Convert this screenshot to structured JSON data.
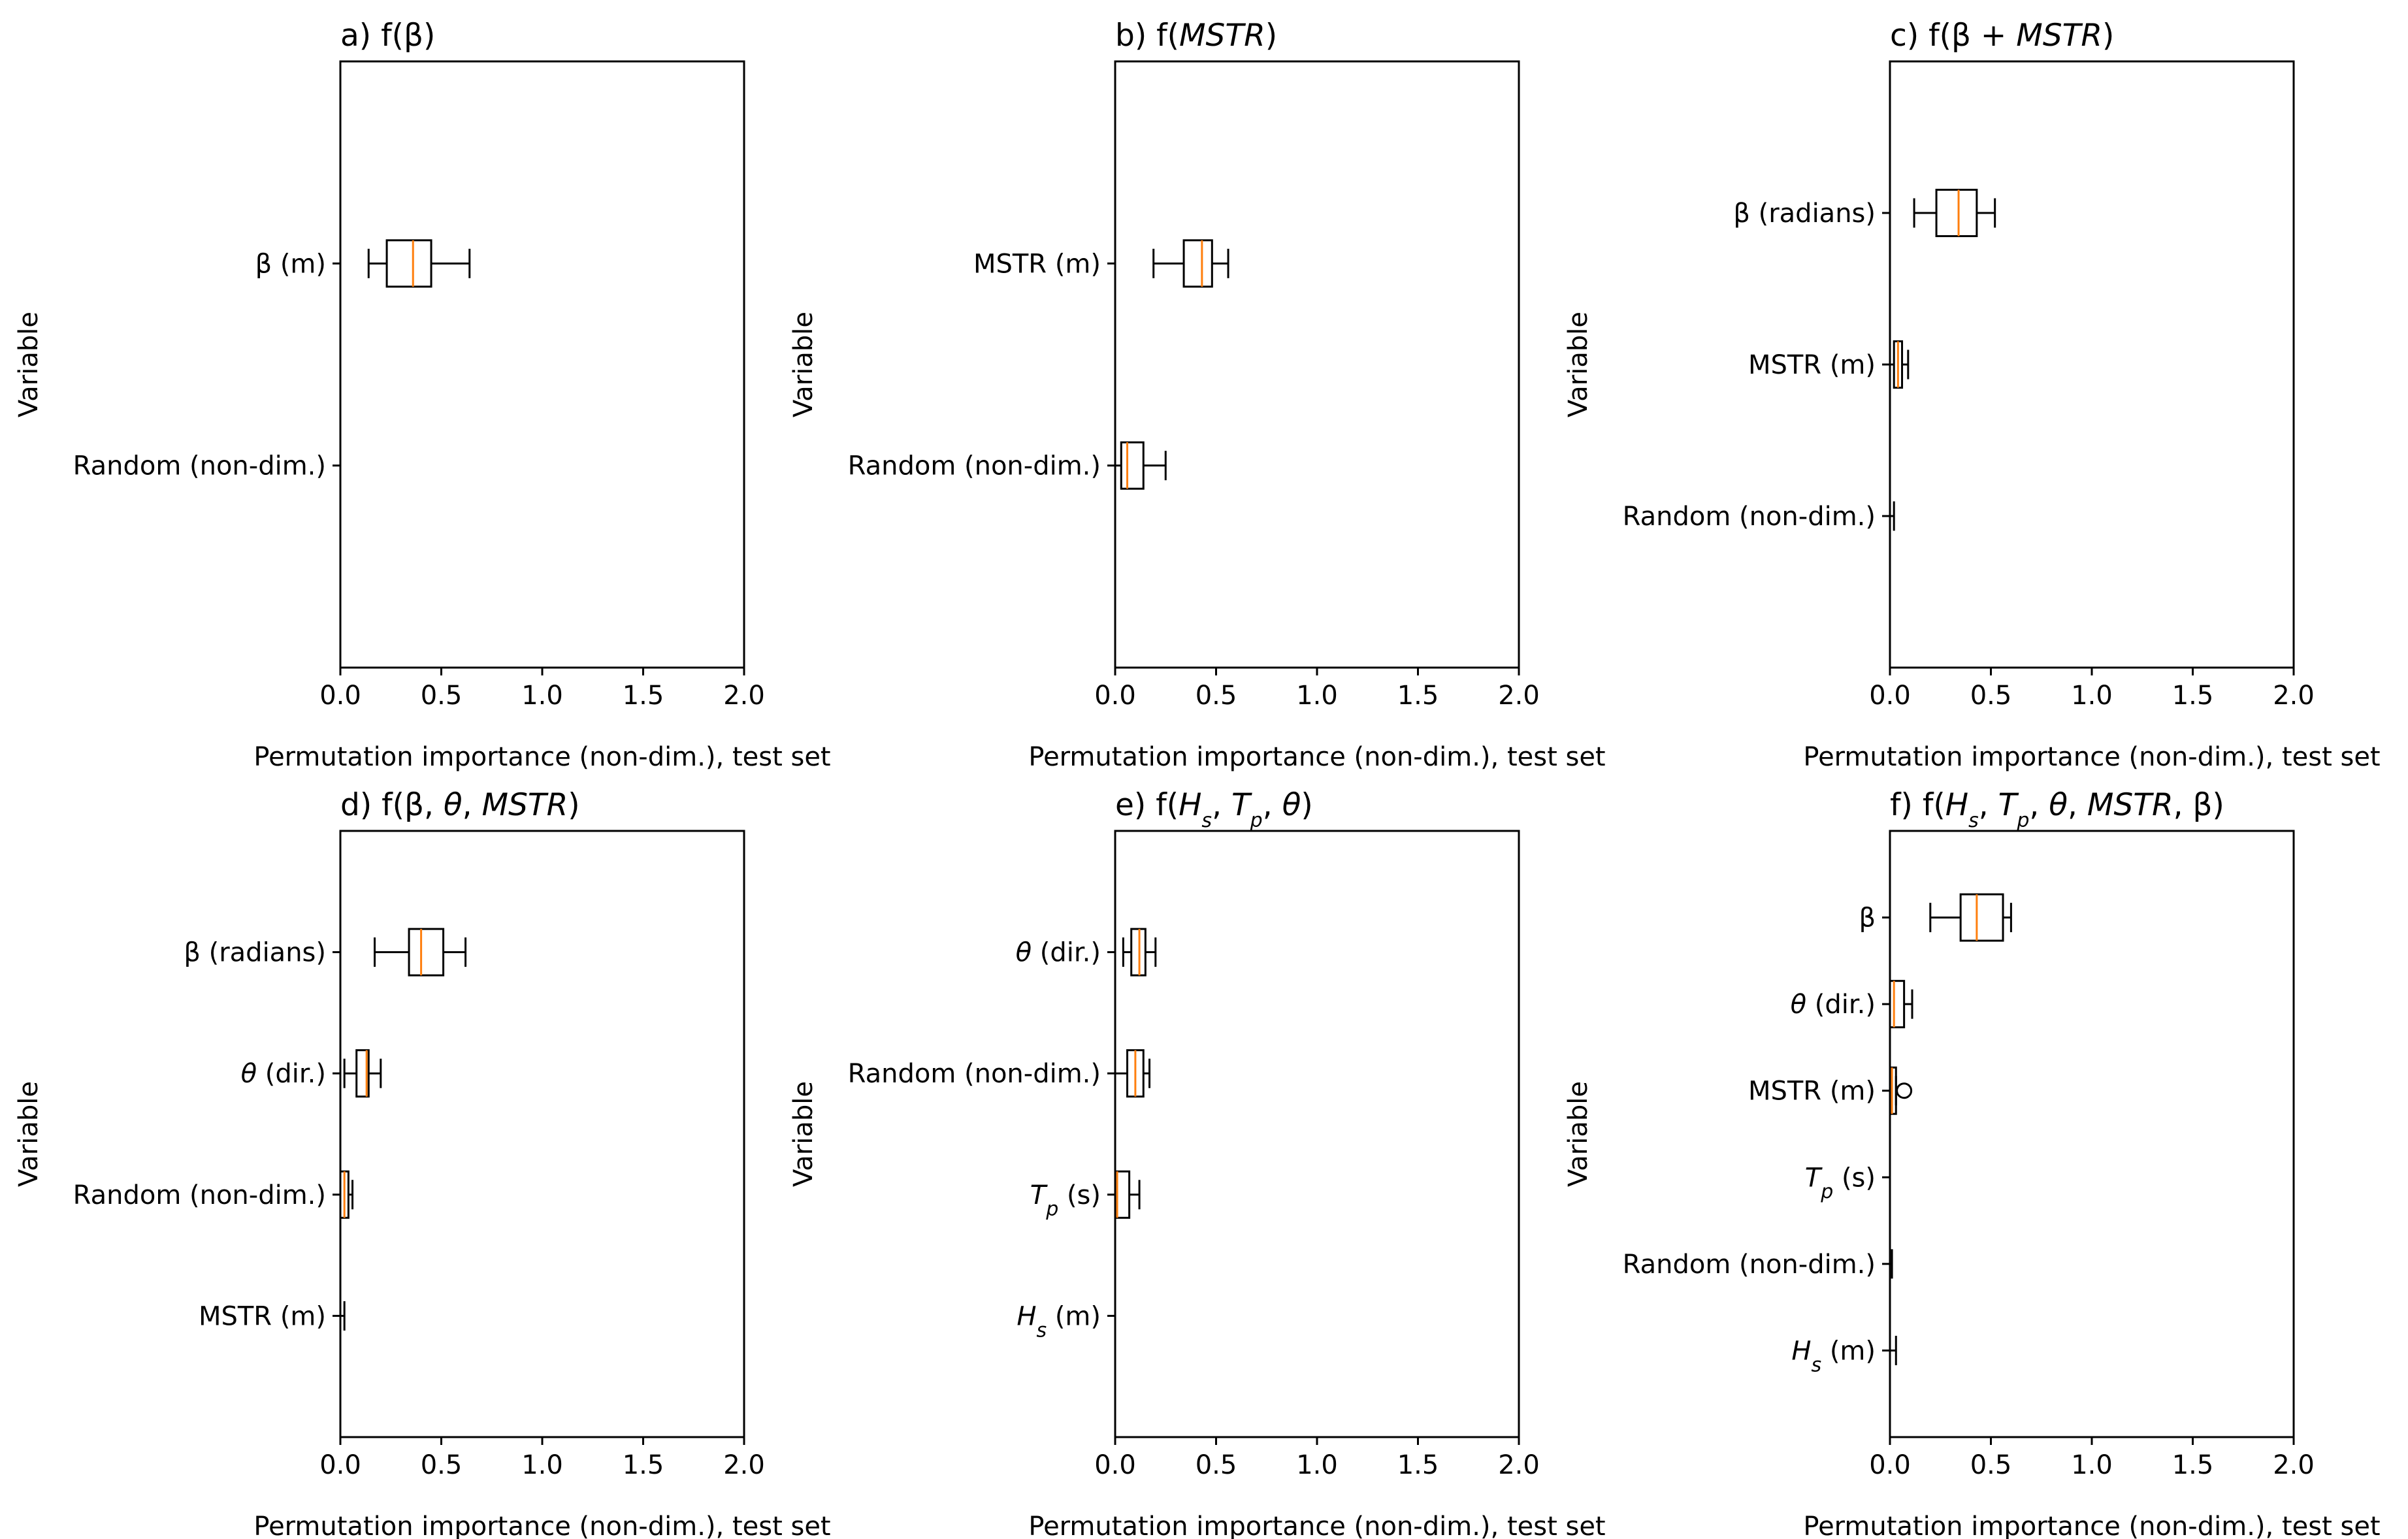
{
  "figure": {
    "colors": {
      "box": "#000000",
      "median": "#ff7f0e",
      "background": "#ffffff"
    }
  },
  "chart_data": [
    {
      "type": "boxplot",
      "orientation": "horizontal",
      "title_parts": [
        {
          "t": "a) f(β)"
        }
      ],
      "xlabel": "Permutation importance (non-dim.), test set",
      "ylabel": "Variable",
      "xlim": [
        0,
        2
      ],
      "xticks": [
        "0.0",
        "0.5",
        "1.0",
        "1.5",
        "2.0"
      ],
      "series": [
        {
          "label_parts": [
            {
              "t": "β (m)"
            }
          ],
          "whislo": 0.14,
          "q1": 0.23,
          "med": 0.36,
          "q3": 0.45,
          "whishi": 0.64,
          "fliers": []
        },
        {
          "label_parts": [
            {
              "t": "Random (non-dim.)"
            }
          ],
          "whislo": 0.0,
          "q1": 0.0,
          "med": 0.0,
          "q3": 0.0,
          "whishi": 0.0,
          "fliers": []
        }
      ]
    },
    {
      "type": "boxplot",
      "orientation": "horizontal",
      "title_parts": [
        {
          "t": "b) f("
        },
        {
          "t": "MSTR",
          "i": true
        },
        {
          "t": ")"
        }
      ],
      "xlabel": "Permutation importance (non-dim.), test set",
      "ylabel": "Variable",
      "xlim": [
        0,
        2
      ],
      "xticks": [
        "0.0",
        "0.5",
        "1.0",
        "1.5",
        "2.0"
      ],
      "series": [
        {
          "label_parts": [
            {
              "t": "MSTR (m)"
            }
          ],
          "whislo": 0.19,
          "q1": 0.34,
          "med": 0.43,
          "q3": 0.48,
          "whishi": 0.56,
          "fliers": []
        },
        {
          "label_parts": [
            {
              "t": "Random (non-dim.)"
            }
          ],
          "whislo": 0.0,
          "q1": 0.03,
          "med": 0.06,
          "q3": 0.14,
          "whishi": 0.25,
          "fliers": []
        }
      ]
    },
    {
      "type": "boxplot",
      "orientation": "horizontal",
      "title_parts": [
        {
          "t": "c) f(β + "
        },
        {
          "t": "MSTR",
          "i": true
        },
        {
          "t": ")"
        }
      ],
      "xlabel": "Permutation importance (non-dim.), test set",
      "ylabel": "Variable",
      "xlim": [
        0,
        2
      ],
      "xticks": [
        "0.0",
        "0.5",
        "1.0",
        "1.5",
        "2.0"
      ],
      "series": [
        {
          "label_parts": [
            {
              "t": "β (radians)"
            }
          ],
          "whislo": 0.12,
          "q1": 0.23,
          "med": 0.34,
          "q3": 0.43,
          "whishi": 0.52,
          "fliers": []
        },
        {
          "label_parts": [
            {
              "t": "MSTR (m)"
            }
          ],
          "whislo": 0.0,
          "q1": 0.02,
          "med": 0.04,
          "q3": 0.06,
          "whishi": 0.09,
          "fliers": []
        },
        {
          "label_parts": [
            {
              "t": "Random (non-dim.)"
            }
          ],
          "whislo": 0.0,
          "q1": 0.0,
          "med": 0.0,
          "q3": 0.0,
          "whishi": 0.02,
          "fliers": []
        }
      ]
    },
    {
      "type": "boxplot",
      "orientation": "horizontal",
      "title_parts": [
        {
          "t": "d) f(β, "
        },
        {
          "t": "θ",
          "i": true
        },
        {
          "t": ", "
        },
        {
          "t": "MSTR",
          "i": true
        },
        {
          "t": ")"
        }
      ],
      "xlabel": "Permutation importance (non-dim.), test set",
      "ylabel": "Variable",
      "xlim": [
        0,
        2
      ],
      "xticks": [
        "0.0",
        "0.5",
        "1.0",
        "1.5",
        "2.0"
      ],
      "series": [
        {
          "label_parts": [
            {
              "t": "β (radians)"
            }
          ],
          "whislo": 0.17,
          "q1": 0.34,
          "med": 0.4,
          "q3": 0.51,
          "whishi": 0.62,
          "fliers": []
        },
        {
          "label_parts": [
            {
              "t": "θ",
              "i": true
            },
            {
              "t": " (dir.)"
            }
          ],
          "whislo": 0.02,
          "q1": 0.08,
          "med": 0.13,
          "q3": 0.14,
          "whishi": 0.2,
          "fliers": []
        },
        {
          "label_parts": [
            {
              "t": "Random (non-dim.)"
            }
          ],
          "whislo": 0.0,
          "q1": 0.0,
          "med": 0.02,
          "q3": 0.04,
          "whishi": 0.06,
          "fliers": []
        },
        {
          "label_parts": [
            {
              "t": "MSTR (m)"
            }
          ],
          "whislo": 0.0,
          "q1": 0.0,
          "med": 0.0,
          "q3": 0.0,
          "whishi": 0.02,
          "fliers": []
        }
      ]
    },
    {
      "type": "boxplot",
      "orientation": "horizontal",
      "title_parts": [
        {
          "t": "e) f("
        },
        {
          "t": "H",
          "i": true
        },
        {
          "t": "s",
          "i": true,
          "sub": true
        },
        {
          "t": ", "
        },
        {
          "t": "T",
          "i": true
        },
        {
          "t": "p",
          "i": true,
          "sub": true
        },
        {
          "t": ", "
        },
        {
          "t": "θ",
          "i": true
        },
        {
          "t": ")"
        }
      ],
      "xlabel": "Permutation importance (non-dim.), test set",
      "ylabel": "Variable",
      "xlim": [
        0,
        2
      ],
      "xticks": [
        "0.0",
        "0.5",
        "1.0",
        "1.5",
        "2.0"
      ],
      "series": [
        {
          "label_parts": [
            {
              "t": "θ",
              "i": true
            },
            {
              "t": " (dir.)"
            }
          ],
          "whislo": 0.04,
          "q1": 0.08,
          "med": 0.12,
          "q3": 0.15,
          "whishi": 0.2,
          "fliers": []
        },
        {
          "label_parts": [
            {
              "t": "Random (non-dim.)"
            }
          ],
          "whislo": 0.0,
          "q1": 0.06,
          "med": 0.1,
          "q3": 0.14,
          "whishi": 0.17,
          "fliers": []
        },
        {
          "label_parts": [
            {
              "t": "T",
              "i": true
            },
            {
              "t": "p",
              "i": true,
              "sub": true
            },
            {
              "t": " (s)"
            }
          ],
          "whislo": 0.0,
          "q1": 0.0,
          "med": 0.01,
          "q3": 0.07,
          "whishi": 0.12,
          "fliers": []
        },
        {
          "label_parts": [
            {
              "t": "H",
              "i": true
            },
            {
              "t": "s",
              "i": true,
              "sub": true
            },
            {
              "t": " (m)"
            }
          ],
          "whislo": 0.0,
          "q1": 0.0,
          "med": 0.0,
          "q3": 0.0,
          "whishi": 0.0,
          "fliers": []
        }
      ]
    },
    {
      "type": "boxplot",
      "orientation": "horizontal",
      "title_parts": [
        {
          "t": "f) f("
        },
        {
          "t": "H",
          "i": true
        },
        {
          "t": "s",
          "i": true,
          "sub": true
        },
        {
          "t": ", "
        },
        {
          "t": "T",
          "i": true
        },
        {
          "t": "p",
          "i": true,
          "sub": true
        },
        {
          "t": ", "
        },
        {
          "t": "θ",
          "i": true
        },
        {
          "t": ", "
        },
        {
          "t": "MSTR",
          "i": true
        },
        {
          "t": ", β)"
        }
      ],
      "xlabel": "Permutation importance (non-dim.), test set",
      "ylabel": "Variable",
      "xlim": [
        0,
        2
      ],
      "xticks": [
        "0.0",
        "0.5",
        "1.0",
        "1.5",
        "2.0"
      ],
      "series": [
        {
          "label_parts": [
            {
              "t": "β"
            }
          ],
          "whislo": 0.2,
          "q1": 0.35,
          "med": 0.43,
          "q3": 0.56,
          "whishi": 0.6,
          "fliers": []
        },
        {
          "label_parts": [
            {
              "t": "θ",
              "i": true
            },
            {
              "t": " (dir.)"
            }
          ],
          "whislo": 0.0,
          "q1": 0.0,
          "med": 0.02,
          "q3": 0.07,
          "whishi": 0.11,
          "fliers": []
        },
        {
          "label_parts": [
            {
              "t": "MSTR (m)"
            }
          ],
          "whislo": 0.0,
          "q1": 0.0,
          "med": 0.01,
          "q3": 0.03,
          "whishi": 0.03,
          "fliers": [
            0.07
          ]
        },
        {
          "label_parts": [
            {
              "t": "T",
              "i": true
            },
            {
              "t": "p",
              "i": true,
              "sub": true
            },
            {
              "t": " (s)"
            }
          ],
          "whislo": 0.0,
          "q1": 0.0,
          "med": 0.0,
          "q3": 0.0,
          "whishi": 0.0,
          "fliers": []
        },
        {
          "label_parts": [
            {
              "t": "Random (non-dim.)"
            }
          ],
          "whislo": 0.0,
          "q1": 0.0,
          "med": 0.0,
          "q3": 0.0,
          "whishi": 0.01,
          "fliers": []
        },
        {
          "label_parts": [
            {
              "t": "H",
              "i": true
            },
            {
              "t": "s",
              "i": true,
              "sub": true
            },
            {
              "t": " (m)"
            }
          ],
          "whislo": 0.0,
          "q1": 0.0,
          "med": 0.0,
          "q3": 0.0,
          "whishi": 0.03,
          "fliers": []
        }
      ]
    }
  ]
}
